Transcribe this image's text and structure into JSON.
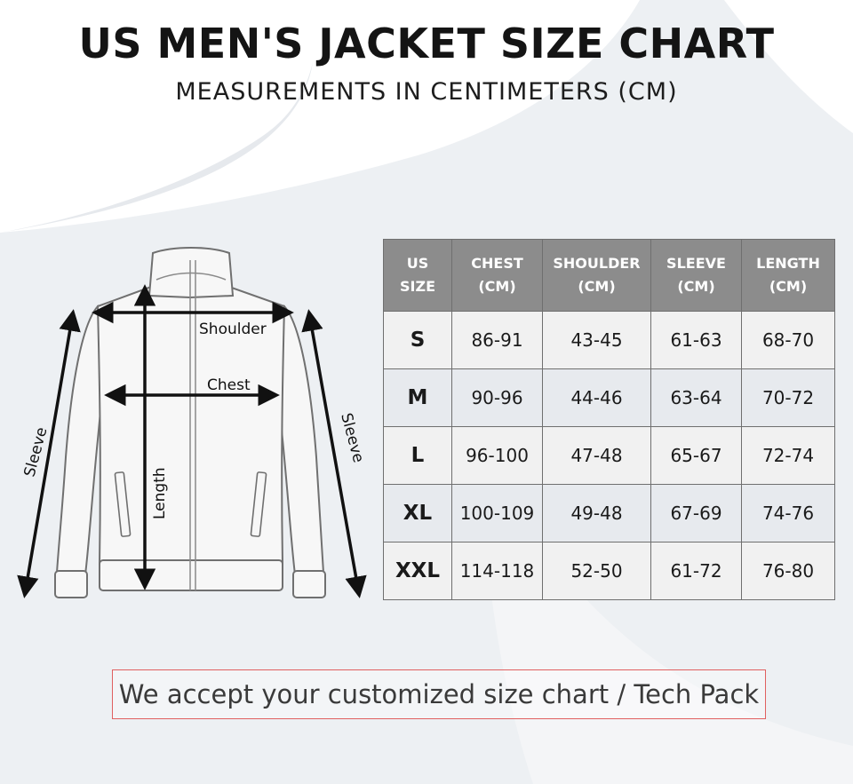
{
  "header": {
    "title": "US MEN'S JACKET SIZE CHART",
    "subtitle": "MEASUREMENTS IN CENTIMETERS (CM)"
  },
  "diagram": {
    "labels": {
      "shoulder": "Shoulder",
      "chest": "Chest",
      "length": "Length",
      "sleeve_left": "Sleeve",
      "sleeve_right": "Sleeve"
    }
  },
  "table": {
    "headers": [
      [
        "US",
        "SIZE"
      ],
      [
        "CHEST",
        "(CM)"
      ],
      [
        "SHOULDER",
        "(CM)"
      ],
      [
        "SLEEVE",
        "(CM)"
      ],
      [
        "LENGTH",
        "(CM)"
      ]
    ],
    "rows": [
      [
        "S",
        "86-91",
        "43-45",
        "61-63",
        "68-70"
      ],
      [
        "M",
        "90-96",
        "44-46",
        "63-64",
        "70-72"
      ],
      [
        "L",
        "96-100",
        "47-48",
        "65-67",
        "72-74"
      ],
      [
        "XL",
        "100-109",
        "49-48",
        "67-69",
        "74-76"
      ],
      [
        "XXL",
        "114-118",
        "52-50",
        "61-72",
        "76-80"
      ]
    ]
  },
  "footer": {
    "note": "We accept your customized size chart / Tech Pack"
  },
  "colors": {
    "header_bg": "#8c8c8c",
    "note_border": "#e06060",
    "background_swoosh": "#edf0f3"
  }
}
